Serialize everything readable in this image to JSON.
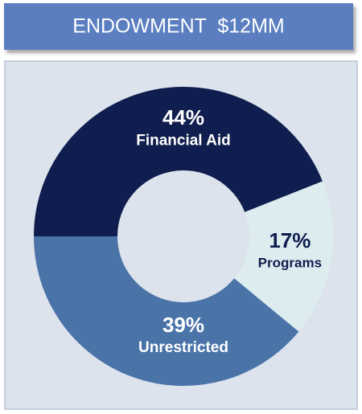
{
  "chart_data": {
    "type": "pie",
    "title": "ENDOWMENT  $12MM",
    "categories": [
      "Financial Aid",
      "Programs",
      "Unrestricted"
    ],
    "values": [
      44,
      17,
      39
    ],
    "value_labels": [
      "44%",
      "17%",
      "39%"
    ],
    "colors": [
      "#0f1e4e",
      "#dcecef",
      "#4a73a8"
    ]
  }
}
